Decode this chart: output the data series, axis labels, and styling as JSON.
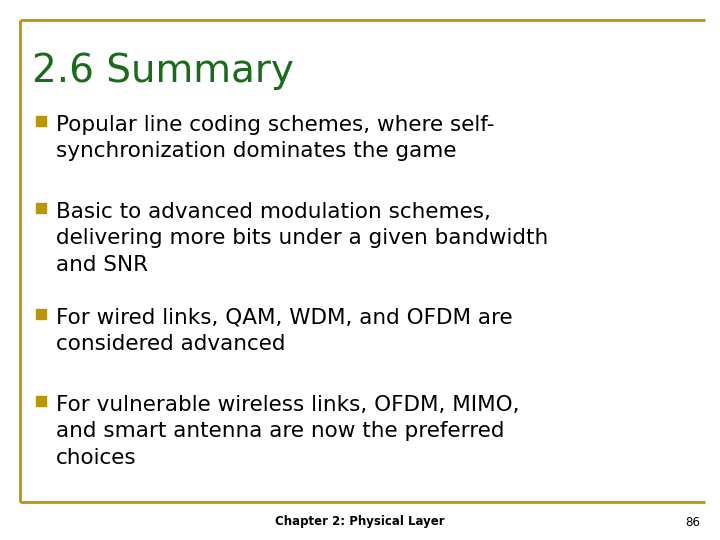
{
  "title": "2.6 Summary",
  "title_color": "#1a6b1a",
  "title_fontsize": 28,
  "bullet_color": "#b8960a",
  "bullet_text_color": "#000000",
  "bullet_fontsize": 15.5,
  "bullets": [
    "Popular line coding schemes, where self-\nsynchronization dominates the game",
    "Basic to advanced modulation schemes,\ndelivering more bits under a given bandwidth\nand SNR",
    "For wired links, QAM, WDM, and OFDM are\nconsidered advanced",
    "For vulnerable wireless links, OFDM, MIMO,\nand smart antenna are now the preferred\nchoices"
  ],
  "footer_text": "Chapter 2: Physical Layer",
  "footer_page": "86",
  "footer_fontsize": 8.5,
  "background_color": "#ffffff",
  "border_color": "#b8960a"
}
